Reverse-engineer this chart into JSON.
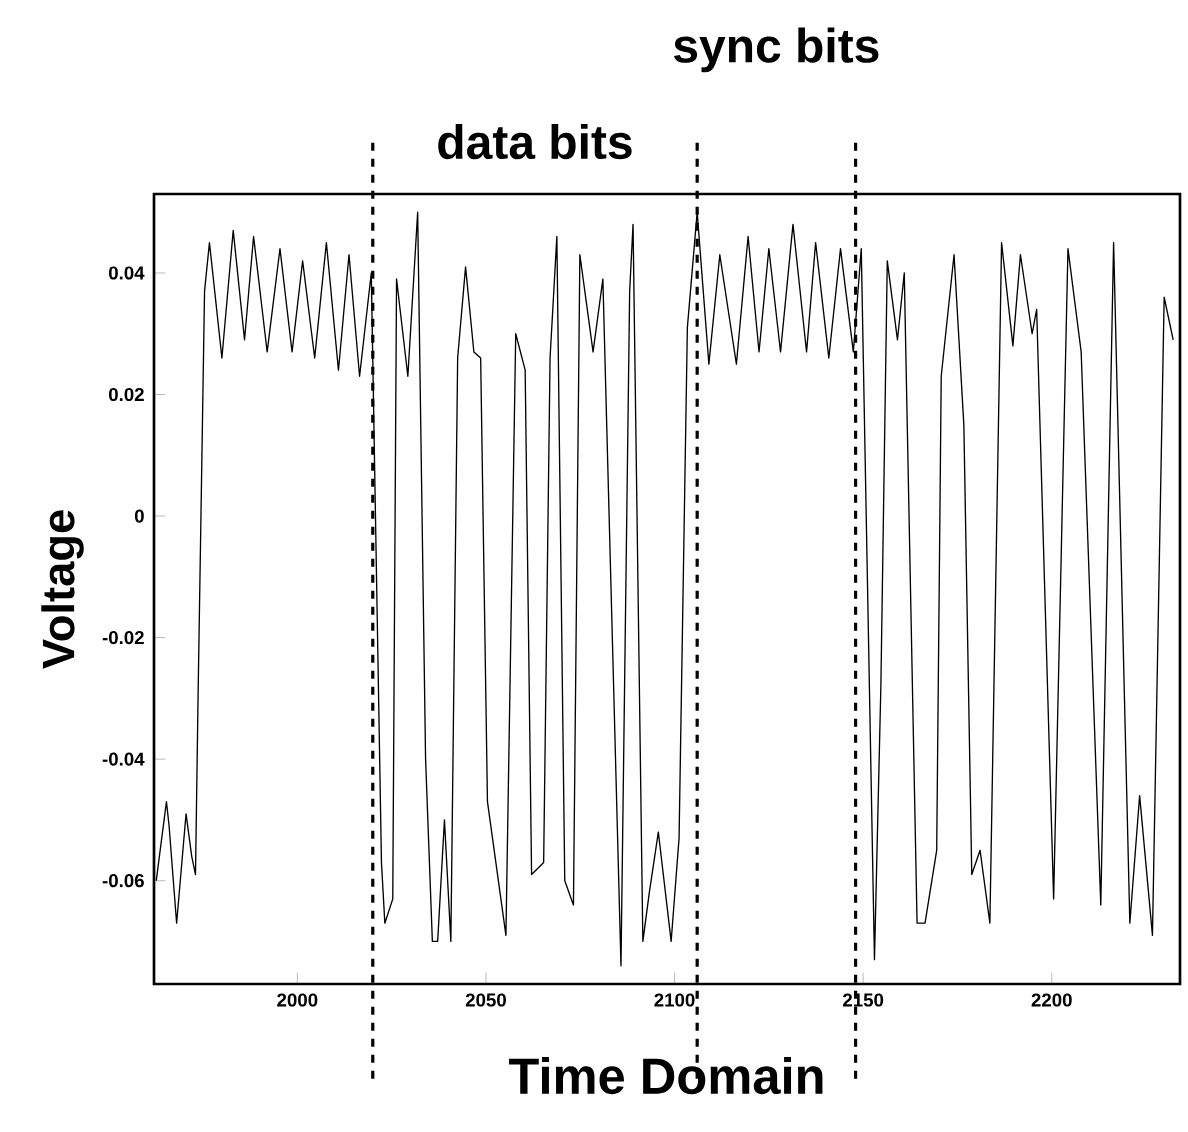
{
  "chart_data": {
    "type": "line",
    "xlabel": "Time Domain",
    "ylabel": "Voltage",
    "xlim": [
      1962,
      2234
    ],
    "ylim": [
      -0.077,
      0.053
    ],
    "xticks": [
      2000,
      2050,
      2100,
      2150,
      2200
    ],
    "yticks": [
      {
        "value": -0.06,
        "label": "-0.06"
      },
      {
        "value": -0.04,
        "label": "-0.04"
      },
      {
        "value": -0.02,
        "label": "-0.02"
      },
      {
        "value": 0,
        "label": "0"
      },
      {
        "value": 0.02,
        "label": "0.02"
      },
      {
        "value": 0.04,
        "label": "0.04"
      }
    ],
    "marker": "none",
    "line_style": "solid",
    "ref_lines": [
      {
        "axis": "x",
        "value": 2020,
        "line_style": "dashed"
      },
      {
        "axis": "x",
        "value": 2106,
        "line_style": "dashed"
      },
      {
        "axis": "x",
        "value": 2148,
        "line_style": "dashed"
      }
    ],
    "annotations": [
      "data bits",
      "sync bits"
    ],
    "series": [
      {
        "color": "#000000",
        "x": [
          1962.6,
          1965.3,
          1966,
          1968,
          1970.5,
          1972,
          1973,
          1973.7,
          1975.4,
          1976.7,
          1980,
          1983,
          1986,
          1988.4,
          1992,
          1995.4,
          1998.6,
          2001.4,
          2004.6,
          2007.7,
          2010.9,
          2013.7,
          2016.5,
          2019.6,
          2022.3,
          2023.2,
          2025.3,
          2026.3,
          2029.3,
          2031.9,
          2034,
          2035.8,
          2037.2,
          2039,
          2040.7,
          2042.5,
          2044.6,
          2046.8,
          2048.6,
          2050.4,
          2055.3,
          2057.9,
          2060.4,
          2062.1,
          2065.3,
          2067,
          2068.8,
          2070.9,
          2073.2,
          2074.9,
          2078.4,
          2081,
          2085.8,
          2088.1,
          2089,
          2091.6,
          2093.3,
          2095.7,
          2099.1,
          2101.2,
          2103.4,
          2106,
          2109.1,
          2112,
          2116.4,
          2119.5,
          2122.4,
          2125,
          2128.1,
          2131.4,
          2135,
          2137.4,
          2140.9,
          2144,
          2147.4,
          2149.5,
          2153,
          2154.7,
          2156.4,
          2159.1,
          2160.9,
          2164.3,
          2166.4,
          2169.5,
          2170.7,
          2174.1,
          2176.7,
          2178.8,
          2181,
          2183.6,
          2186.7,
          2189.7,
          2191.7,
          2194.8,
          2196,
          2200.5,
          2204.3,
          2207.8,
          2213,
          2216.4,
          2220.7,
          2223.3,
          2226.7,
          2229.8,
          2232.2
        ],
        "values": [
          -0.06,
          -0.047,
          -0.051,
          -0.067,
          -0.049,
          -0.056,
          -0.059,
          -0.029,
          0.037,
          0.045,
          0.026,
          0.047,
          0.029,
          0.046,
          0.027,
          0.044,
          0.027,
          0.042,
          0.026,
          0.045,
          0.024,
          0.043,
          0.023,
          0.04,
          -0.057,
          -0.067,
          -0.063,
          0.039,
          0.023,
          0.05,
          -0.04,
          -0.07,
          -0.07,
          -0.05,
          -0.07,
          0.026,
          0.041,
          0.027,
          0.026,
          -0.047,
          -0.069,
          0.03,
          0.024,
          -0.059,
          -0.057,
          0.026,
          0.046,
          -0.06,
          -0.064,
          0.043,
          0.027,
          0.039,
          -0.074,
          0.037,
          0.048,
          -0.07,
          -0.062,
          -0.052,
          -0.07,
          -0.053,
          0.031,
          0.05,
          0.025,
          0.043,
          0.025,
          0.046,
          0.027,
          0.044,
          0.027,
          0.048,
          0.027,
          0.045,
          0.026,
          0.044,
          0.027,
          0.044,
          -0.073,
          -0.028,
          0.042,
          0.029,
          0.04,
          -0.067,
          -0.067,
          -0.055,
          0.023,
          0.043,
          0.015,
          -0.059,
          -0.055,
          -0.067,
          0.045,
          0.028,
          0.043,
          0.03,
          0.034,
          -0.063,
          0.044,
          0.027,
          -0.064,
          0.045,
          -0.067,
          -0.046,
          -0.069,
          0.036,
          0.029
        ]
      }
    ]
  }
}
